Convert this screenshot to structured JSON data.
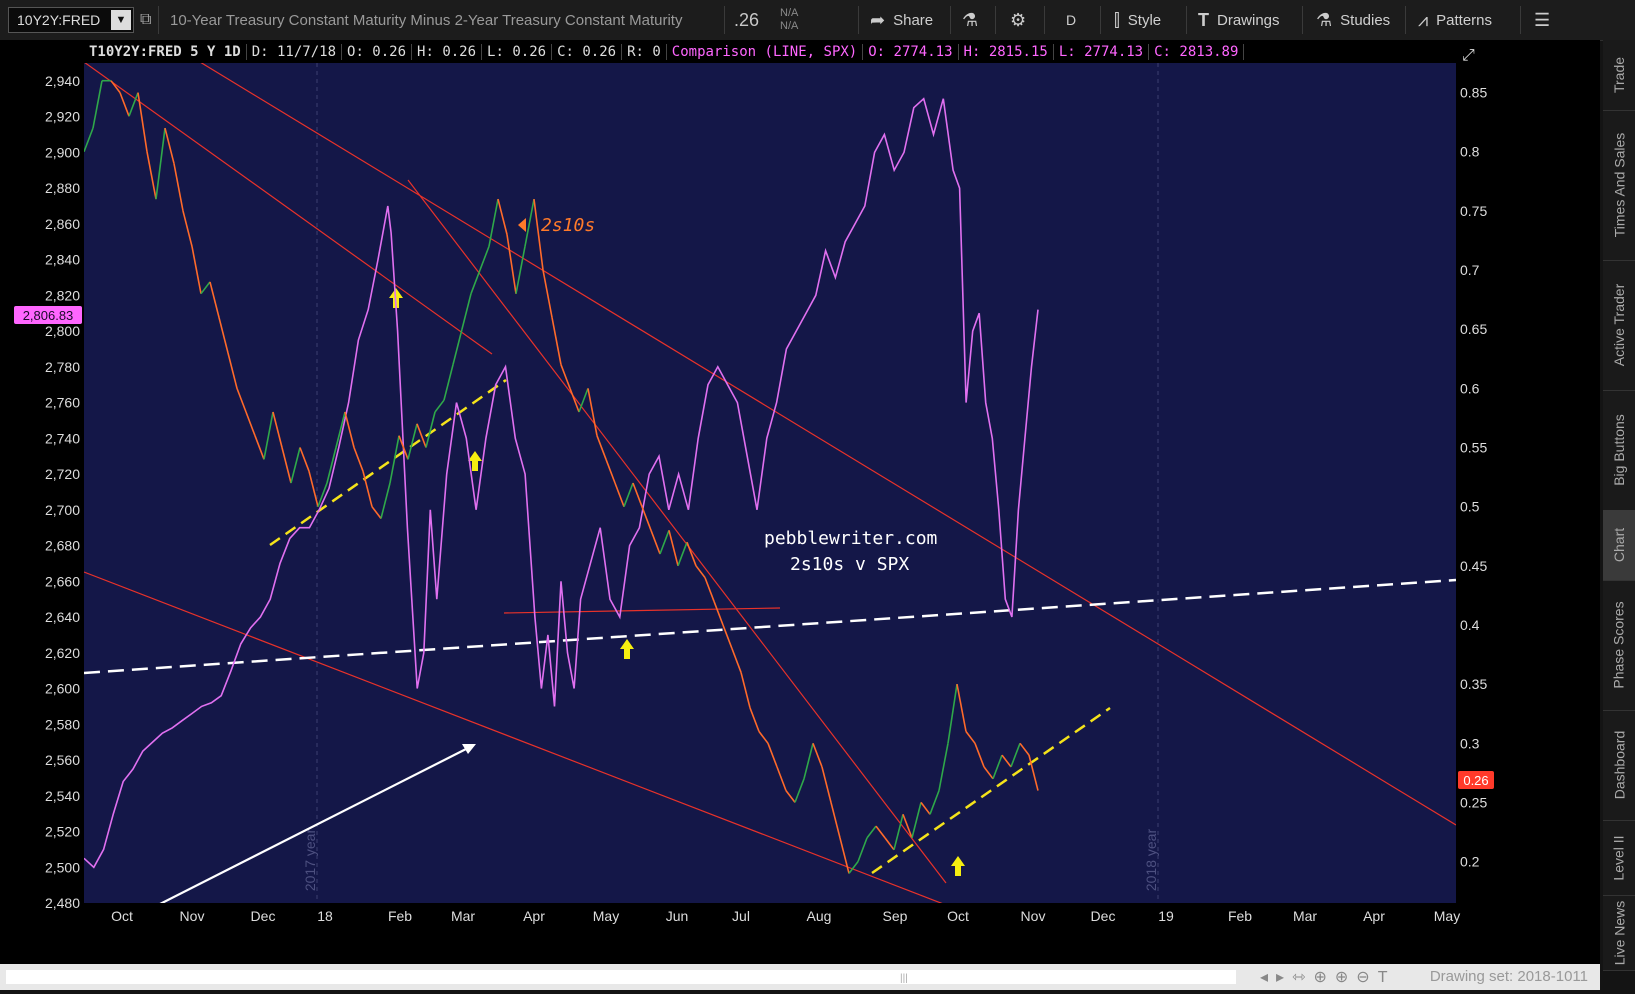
{
  "topbar": {
    "symbol": "10Y2Y:FRED",
    "description": "10-Year Treasury Constant Maturity Minus 2-Year Treasury Constant Maturity",
    "last": ".26",
    "na1": "N/A",
    "na2": "N/A",
    "share": "Share",
    "timeframe": "D",
    "style": "Style",
    "drawings": "Drawings",
    "studies": "Studies",
    "patterns": "Patterns"
  },
  "infobar": {
    "study": "T10Y2Y:FRED 5 Y 1D",
    "date": "D: 11/7/18",
    "open": "O: 0.26",
    "high": "H: 0.26",
    "low": "L: 0.26",
    "close": "C: 0.26",
    "range": "R: 0",
    "comparison": "Comparison (LINE, SPX)",
    "c_open": "O: 2774.13",
    "c_high": "H: 2815.15",
    "c_low": "L: 2774.13",
    "c_close": "C: 2813.89"
  },
  "chart_data": {
    "type": "line",
    "left_axis_ticks": [
      "2,480",
      "2,500",
      "2,520",
      "2,540",
      "2,560",
      "2,580",
      "2,600",
      "2,620",
      "2,640",
      "2,660",
      "2,680",
      "2,700",
      "2,720",
      "2,740",
      "2,760",
      "2,780",
      "2,800",
      "2,820",
      "2,840",
      "2,860",
      "2,880",
      "2,900",
      "2,920",
      "2,940"
    ],
    "right_axis_ticks": [
      "0.2",
      "0.25",
      "0.3",
      "0.35",
      "0.4",
      "0.45",
      "0.5",
      "0.55",
      "0.6",
      "0.65",
      "0.7",
      "0.75",
      "0.8",
      "0.85"
    ],
    "x_ticks": [
      "Oct",
      "Nov",
      "Dec",
      "18",
      "Feb",
      "Mar",
      "Apr",
      "May",
      "Jun",
      "Jul",
      "Aug",
      "Sep",
      "Oct",
      "Nov",
      "Dec",
      "19",
      "Feb",
      "Mar",
      "Apr",
      "May"
    ],
    "left_price_label": "2,806.83",
    "right_price_label": "0.26",
    "left_ylim": [
      2480,
      2950
    ],
    "right_ylim": [
      0.165,
      0.875
    ],
    "year_markers": [
      "2017 year",
      "2018 year"
    ],
    "annotations": [
      "2s10s",
      "pebblewriter.com",
      "2s10s v SPX"
    ],
    "series": [
      {
        "name": "SPX",
        "color": "#e070f0",
        "values": [
          [
            0,
            2505
          ],
          [
            3,
            2500
          ],
          [
            6,
            2510
          ],
          [
            9,
            2530
          ],
          [
            12,
            2548
          ],
          [
            15,
            2555
          ],
          [
            18,
            2565
          ],
          [
            21,
            2570
          ],
          [
            24,
            2575
          ],
          [
            27,
            2578
          ],
          [
            30,
            2582
          ],
          [
            33,
            2586
          ],
          [
            36,
            2590
          ],
          [
            39,
            2592
          ],
          [
            42,
            2596
          ],
          [
            45,
            2610
          ],
          [
            48,
            2625
          ],
          [
            51,
            2634
          ],
          [
            54,
            2640
          ],
          [
            57,
            2650
          ],
          [
            60,
            2670
          ],
          [
            63,
            2684
          ],
          [
            66,
            2690
          ],
          [
            69,
            2690
          ],
          [
            72,
            2700
          ],
          [
            75,
            2712
          ],
          [
            78,
            2735
          ],
          [
            81,
            2760
          ],
          [
            84,
            2795
          ],
          [
            87,
            2812
          ],
          [
            90,
            2840
          ],
          [
            93,
            2870
          ],
          [
            94,
            2855
          ],
          [
            96,
            2800
          ],
          [
            99,
            2690
          ],
          [
            102,
            2600
          ],
          [
            104,
            2620
          ],
          [
            106,
            2700
          ],
          [
            108,
            2650
          ],
          [
            111,
            2720
          ],
          [
            114,
            2760
          ],
          [
            117,
            2740
          ],
          [
            120,
            2700
          ],
          [
            123,
            2740
          ],
          [
            126,
            2770
          ],
          [
            129,
            2780
          ],
          [
            132,
            2740
          ],
          [
            135,
            2720
          ],
          [
            138,
            2640
          ],
          [
            140,
            2600
          ],
          [
            142,
            2630
          ],
          [
            144,
            2590
          ],
          [
            146,
            2660
          ],
          [
            148,
            2620
          ],
          [
            150,
            2600
          ],
          [
            152,
            2650
          ],
          [
            155,
            2670
          ],
          [
            158,
            2690
          ],
          [
            161,
            2650
          ],
          [
            164,
            2640
          ],
          [
            167,
            2680
          ],
          [
            170,
            2690
          ],
          [
            173,
            2720
          ],
          [
            176,
            2730
          ],
          [
            179,
            2700
          ],
          [
            182,
            2720
          ],
          [
            185,
            2700
          ],
          [
            188,
            2740
          ],
          [
            191,
            2770
          ],
          [
            194,
            2780
          ],
          [
            197,
            2770
          ],
          [
            200,
            2760
          ],
          [
            203,
            2730
          ],
          [
            206,
            2700
          ],
          [
            209,
            2740
          ],
          [
            212,
            2760
          ],
          [
            215,
            2790
          ],
          [
            218,
            2800
          ],
          [
            221,
            2810
          ],
          [
            224,
            2820
          ],
          [
            227,
            2845
          ],
          [
            230,
            2830
          ],
          [
            233,
            2850
          ],
          [
            236,
            2860
          ],
          [
            239,
            2870
          ],
          [
            242,
            2900
          ],
          [
            245,
            2910
          ],
          [
            248,
            2890
          ],
          [
            251,
            2900
          ],
          [
            254,
            2925
          ],
          [
            257,
            2930
          ],
          [
            260,
            2910
          ],
          [
            263,
            2930
          ],
          [
            266,
            2890
          ],
          [
            268,
            2880
          ],
          [
            270,
            2760
          ],
          [
            272,
            2800
          ],
          [
            274,
            2810
          ],
          [
            276,
            2760
          ],
          [
            278,
            2740
          ],
          [
            280,
            2700
          ],
          [
            282,
            2650
          ],
          [
            284,
            2640
          ],
          [
            286,
            2700
          ],
          [
            288,
            2740
          ],
          [
            290,
            2780
          ],
          [
            292,
            2812
          ]
        ]
      },
      {
        "name": "2s10s",
        "color": "#ff6a2a",
        "values": [
          [
            0,
            0.8
          ],
          [
            2,
            0.82
          ],
          [
            4,
            0.86
          ],
          [
            6,
            0.86
          ],
          [
            8,
            0.85
          ],
          [
            10,
            0.83
          ],
          [
            12,
            0.85
          ],
          [
            14,
            0.8
          ],
          [
            16,
            0.76
          ],
          [
            18,
            0.82
          ],
          [
            20,
            0.79
          ],
          [
            22,
            0.75
          ],
          [
            24,
            0.72
          ],
          [
            26,
            0.68
          ],
          [
            28,
            0.69
          ],
          [
            30,
            0.66
          ],
          [
            32,
            0.63
          ],
          [
            34,
            0.6
          ],
          [
            36,
            0.58
          ],
          [
            38,
            0.56
          ],
          [
            40,
            0.54
          ],
          [
            42,
            0.58
          ],
          [
            44,
            0.55
          ],
          [
            46,
            0.52
          ],
          [
            48,
            0.55
          ],
          [
            50,
            0.53
          ],
          [
            52,
            0.5
          ],
          [
            54,
            0.52
          ],
          [
            56,
            0.55
          ],
          [
            58,
            0.58
          ],
          [
            60,
            0.55
          ],
          [
            62,
            0.53
          ],
          [
            64,
            0.5
          ],
          [
            66,
            0.49
          ],
          [
            68,
            0.52
          ],
          [
            70,
            0.56
          ],
          [
            72,
            0.54
          ],
          [
            74,
            0.57
          ],
          [
            76,
            0.55
          ],
          [
            78,
            0.58
          ],
          [
            80,
            0.59
          ],
          [
            82,
            0.62
          ],
          [
            84,
            0.65
          ],
          [
            86,
            0.68
          ],
          [
            88,
            0.7
          ],
          [
            90,
            0.72
          ],
          [
            92,
            0.76
          ],
          [
            94,
            0.73
          ],
          [
            96,
            0.68
          ],
          [
            98,
            0.72
          ],
          [
            100,
            0.76
          ],
          [
            102,
            0.7
          ],
          [
            104,
            0.66
          ],
          [
            106,
            0.62
          ],
          [
            108,
            0.6
          ],
          [
            110,
            0.58
          ],
          [
            112,
            0.6
          ],
          [
            114,
            0.56
          ],
          [
            116,
            0.54
          ],
          [
            118,
            0.52
          ],
          [
            120,
            0.5
          ],
          [
            122,
            0.52
          ],
          [
            124,
            0.5
          ],
          [
            126,
            0.48
          ],
          [
            128,
            0.46
          ],
          [
            130,
            0.48
          ],
          [
            132,
            0.45
          ],
          [
            134,
            0.47
          ],
          [
            136,
            0.45
          ],
          [
            138,
            0.44
          ],
          [
            140,
            0.42
          ],
          [
            142,
            0.4
          ],
          [
            144,
            0.38
          ],
          [
            146,
            0.36
          ],
          [
            148,
            0.33
          ],
          [
            150,
            0.31
          ],
          [
            152,
            0.3
          ],
          [
            154,
            0.28
          ],
          [
            156,
            0.26
          ],
          [
            158,
            0.25
          ],
          [
            160,
            0.27
          ],
          [
            162,
            0.3
          ],
          [
            164,
            0.28
          ],
          [
            166,
            0.25
          ],
          [
            168,
            0.22
          ],
          [
            170,
            0.19
          ],
          [
            172,
            0.2
          ],
          [
            174,
            0.22
          ],
          [
            176,
            0.23
          ],
          [
            178,
            0.22
          ],
          [
            180,
            0.21
          ],
          [
            182,
            0.24
          ],
          [
            184,
            0.22
          ],
          [
            186,
            0.25
          ],
          [
            188,
            0.24
          ],
          [
            190,
            0.26
          ],
          [
            192,
            0.3
          ],
          [
            194,
            0.35
          ],
          [
            196,
            0.31
          ],
          [
            198,
            0.3
          ],
          [
            200,
            0.28
          ],
          [
            202,
            0.27
          ],
          [
            204,
            0.29
          ],
          [
            206,
            0.28
          ],
          [
            208,
            0.3
          ],
          [
            210,
            0.29
          ],
          [
            212,
            0.26
          ]
        ]
      }
    ]
  },
  "right_tabs": [
    "Trade",
    "Times And Sales",
    "Active Trader",
    "Big Buttons",
    "Chart",
    "Phase Scores",
    "Dashboard",
    "Level II",
    "Live News"
  ],
  "bottombar": {
    "drawing_set": "Drawing set: 2018-1011"
  }
}
